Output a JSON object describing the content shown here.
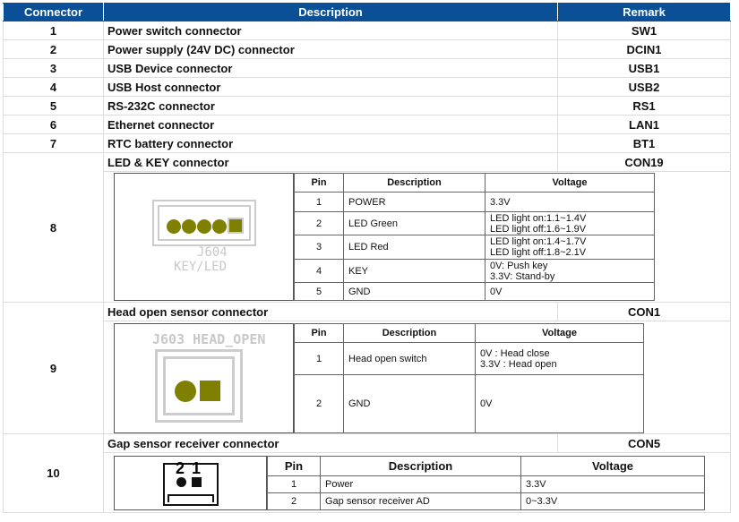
{
  "headers": [
    "Connector",
    "Description",
    "Remark"
  ],
  "rows": [
    {
      "no": "1",
      "desc": "Power switch connector",
      "remark": "SW1"
    },
    {
      "no": "2",
      "desc": "Power supply (24V DC) connector",
      "remark": "DCIN1"
    },
    {
      "no": "3",
      "desc": "USB Device connector",
      "remark": "USB1"
    },
    {
      "no": "4",
      "desc": "USB Host connector",
      "remark": "USB2"
    },
    {
      "no": "5",
      "desc": "RS-232C connector",
      "remark": "RS1"
    },
    {
      "no": "6",
      "desc": "Ethernet connector",
      "remark": "LAN1"
    },
    {
      "no": "7",
      "desc": "RTC battery connector",
      "remark": "BT1"
    },
    {
      "no": "8",
      "desc": "LED & KEY connector",
      "remark": "CON19"
    },
    {
      "no": "9",
      "desc": "Head open sensor connector",
      "remark": "CON1"
    },
    {
      "no": "10",
      "desc": "Gap sensor receiver connector",
      "remark": "CON5"
    }
  ],
  "sub_headers": [
    "Pin",
    "Description",
    "Voltage"
  ],
  "con19": {
    "silk1": "J604",
    "silk2": "KEY/LED",
    "pins": [
      {
        "pin": "1",
        "desc": "POWER",
        "v": [
          "3.3V"
        ]
      },
      {
        "pin": "2",
        "desc": "LED Green",
        "v": [
          "LED light on:1.1~1.4V",
          "LED light off:1.6~1.9V"
        ]
      },
      {
        "pin": "3",
        "desc": "LED Red",
        "v": [
          "LED light on:1.4~1.7V",
          "LED light off:1.8~2.1V"
        ]
      },
      {
        "pin": "4",
        "desc": "KEY",
        "v": [
          "0V: Push key",
          "3.3V: Stand-by"
        ]
      },
      {
        "pin": "5",
        "desc": "GND",
        "v": [
          "0V"
        ]
      }
    ]
  },
  "con1": {
    "silk": "J603 HEAD_OPEN",
    "pins": [
      {
        "pin": "1",
        "desc": "Head open switch",
        "v": [
          "0V : Head close",
          "3.3V : Head open"
        ]
      },
      {
        "pin": "2",
        "desc": "GND",
        "v": [
          "0V"
        ]
      }
    ]
  },
  "con5": {
    "label2": "2",
    "label1": "1",
    "pins": [
      {
        "pin": "1",
        "desc": "Power",
        "v": [
          "3.3V"
        ]
      },
      {
        "pin": "2",
        "desc": "Gap sensor receiver AD",
        "v": [
          "0~3.3V"
        ]
      }
    ]
  },
  "colors": {
    "header": "#0b4f96",
    "pad": "#808000"
  }
}
